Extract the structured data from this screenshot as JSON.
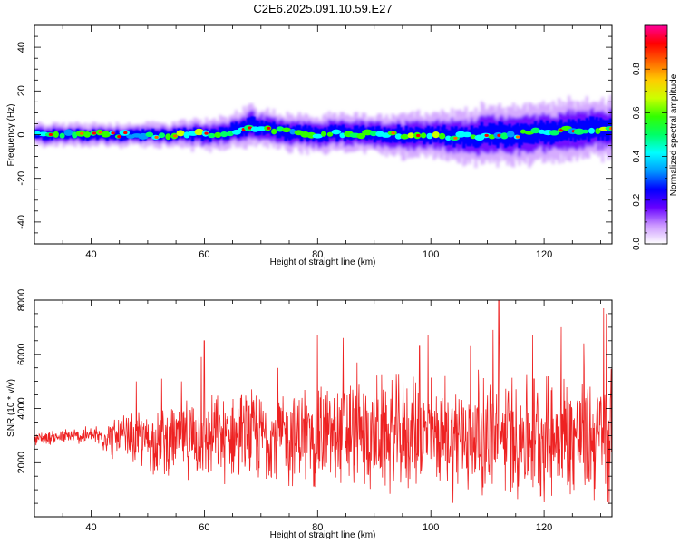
{
  "title": "C2E6.2025.091.10.59.E27",
  "colors": {
    "snr_line": "#ee2222",
    "colormap": [
      "#ffffff",
      "#cc99ff",
      "#6600ff",
      "#0000ff",
      "#0099ff",
      "#00ffff",
      "#00ff66",
      "#33ff00",
      "#ccff00",
      "#ffcc00",
      "#ff6600",
      "#ff0000",
      "#ff0099"
    ]
  },
  "chart_data": [
    {
      "type": "heatmap",
      "title": "C2E6.2025.091.10.59.E27",
      "xlabel": "Height of straight line (km)",
      "ylabel": "Frequency (Hz)",
      "xlim": [
        30,
        132
      ],
      "ylim": [
        -50,
        50
      ],
      "xticks": [
        "40",
        "60",
        "80",
        "100",
        "120"
      ],
      "yticks": [
        "40",
        "20",
        "0",
        "-20",
        "-40"
      ],
      "colorbar": {
        "label": "Normalized spectral amplitude",
        "range": [
          0,
          1
        ],
        "ticks": [
          "0.0",
          "0.2",
          "0.4",
          "0.6",
          "0.8"
        ]
      },
      "ridge": {
        "x": [
          30,
          40,
          50,
          60,
          66,
          68,
          70,
          75,
          80,
          85,
          90,
          95,
          100,
          105,
          110,
          115,
          120,
          125,
          132
        ],
        "center": [
          0,
          0,
          0,
          0,
          2,
          4,
          3,
          1,
          0,
          1,
          0,
          0,
          0,
          -1,
          0,
          0,
          1,
          2,
          3
        ],
        "halfwidth": [
          3,
          3,
          3,
          4,
          5,
          6,
          5,
          5,
          5,
          5,
          5,
          6,
          6,
          7,
          8,
          8,
          8,
          8,
          8
        ]
      }
    },
    {
      "type": "line",
      "xlabel": "Height of straight line (km)",
      "ylabel": "SNR (10 * v/v)",
      "xlim": [
        30,
        132
      ],
      "ylim": [
        0,
        8000
      ],
      "xticks": [
        "40",
        "60",
        "80",
        "100",
        "120"
      ],
      "yticks": [
        "8000",
        "6000",
        "4000",
        "2000"
      ],
      "envelope": {
        "x": [
          30,
          40,
          45,
          50,
          60,
          70,
          80,
          90,
          100,
          110,
          120,
          132
        ],
        "mean": [
          2900,
          3000,
          2900,
          2800,
          2900,
          3000,
          3000,
          3000,
          3000,
          3000,
          3000,
          3000
        ],
        "amplitude": [
          250,
          350,
          900,
          1200,
          1600,
          1800,
          2100,
          2200,
          2300,
          2400,
          2500,
          2600
        ]
      },
      "peaks": [
        {
          "x": 48,
          "y": 5000
        },
        {
          "x": 52.5,
          "y": 5100
        },
        {
          "x": 56,
          "y": 5000
        },
        {
          "x": 59.5,
          "y": 5900
        },
        {
          "x": 60,
          "y": 6500
        },
        {
          "x": 73,
          "y": 5500
        },
        {
          "x": 80,
          "y": 6700
        },
        {
          "x": 84.5,
          "y": 6600
        },
        {
          "x": 87,
          "y": 5700
        },
        {
          "x": 98,
          "y": 6300
        },
        {
          "x": 99.5,
          "y": 6700
        },
        {
          "x": 107,
          "y": 6300
        },
        {
          "x": 111,
          "y": 6900
        },
        {
          "x": 112,
          "y": 8200
        },
        {
          "x": 118,
          "y": 6700
        },
        {
          "x": 123,
          "y": 7000
        },
        {
          "x": 127,
          "y": 6400
        },
        {
          "x": 130.5,
          "y": 7700
        },
        {
          "x": 131,
          "y": 7500
        }
      ]
    }
  ]
}
